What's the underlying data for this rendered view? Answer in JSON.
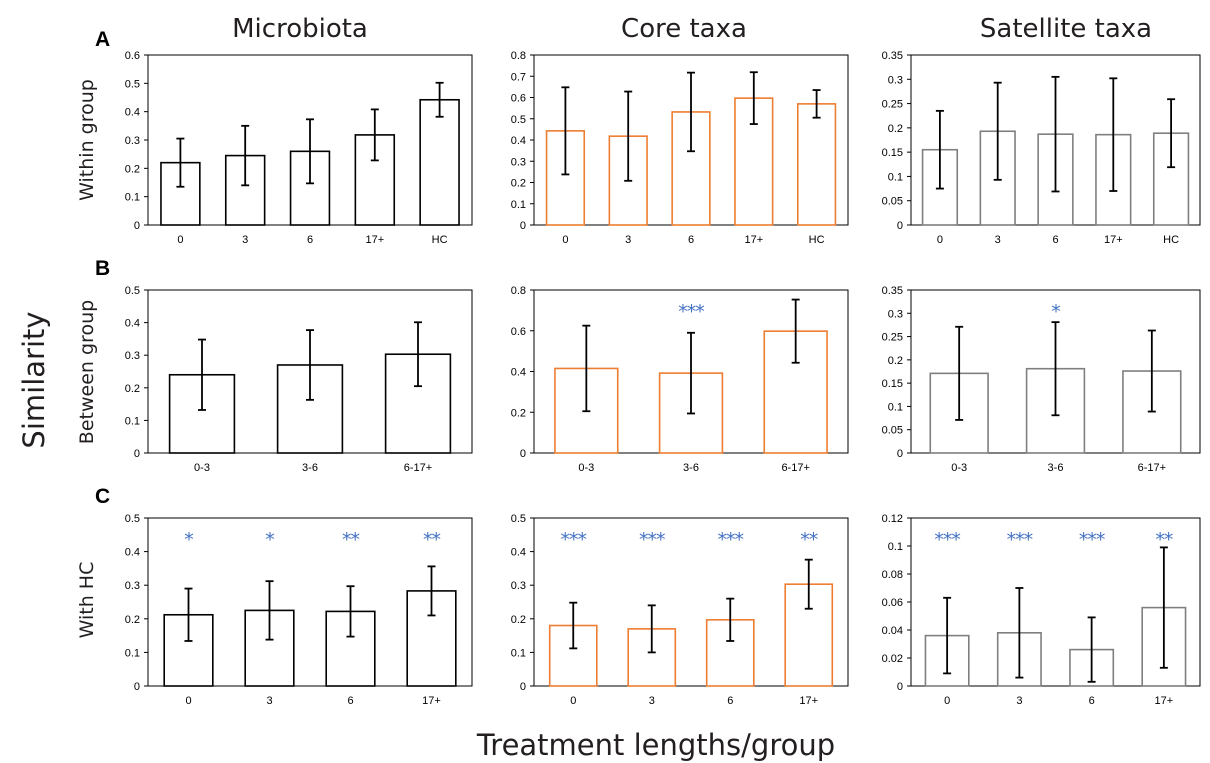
{
  "column_titles": [
    "Microbiota",
    "Core taxa",
    "Satellite taxa"
  ],
  "row_letters": [
    "A",
    "B",
    "C"
  ],
  "row_ylabels": [
    "Within group",
    "Between group",
    "With HC"
  ],
  "shared_ylabel": "Similarity",
  "shared_xlabel": "Treatment lengths/group",
  "colors": {
    "microbiota": "#000000",
    "core": "#ed7d31",
    "satellite": "#7f7f7f",
    "stars": "#4472c4"
  },
  "chart_data": [
    {
      "type": "bar",
      "row": 0,
      "col": 0,
      "color": "#000000",
      "categories": [
        "0",
        "3",
        "6",
        "17+",
        "HC"
      ],
      "values": [
        0.22,
        0.245,
        0.26,
        0.318,
        0.442
      ],
      "errors": [
        0.085,
        0.105,
        0.113,
        0.09,
        0.06
      ],
      "ylim": [
        0,
        0.6
      ],
      "yticks": [
        0,
        0.1,
        0.2,
        0.3,
        0.4,
        0.5,
        0.6
      ],
      "ytick_labels": [
        "0",
        "0.1",
        "0.2",
        "0.3",
        "0.4",
        "0.5",
        "0.6"
      ],
      "annotations": []
    },
    {
      "type": "bar",
      "row": 0,
      "col": 1,
      "color": "#ed7d31",
      "categories": [
        "0",
        "3",
        "6",
        "17+",
        "HC"
      ],
      "values": [
        0.443,
        0.418,
        0.532,
        0.597,
        0.57
      ],
      "errors": [
        0.205,
        0.21,
        0.185,
        0.122,
        0.065
      ],
      "ylim": [
        0,
        0.8
      ],
      "yticks": [
        0,
        0.1,
        0.2,
        0.3,
        0.4,
        0.5,
        0.6,
        0.7,
        0.8
      ],
      "ytick_labels": [
        "0",
        "0.1",
        "0.2",
        "0.3",
        "0.4",
        "0.5",
        "0.6",
        "0.7",
        "0.8"
      ],
      "annotations": []
    },
    {
      "type": "bar",
      "row": 0,
      "col": 2,
      "color": "#7f7f7f",
      "categories": [
        "0",
        "3",
        "6",
        "17+",
        "HC"
      ],
      "values": [
        0.155,
        0.193,
        0.187,
        0.186,
        0.189
      ],
      "errors": [
        0.08,
        0.1,
        0.118,
        0.116,
        0.07
      ],
      "ylim": [
        0,
        0.35
      ],
      "yticks": [
        0,
        0.05,
        0.1,
        0.15,
        0.2,
        0.25,
        0.3,
        0.35
      ],
      "ytick_labels": [
        "0",
        "0.05",
        "0.1",
        "0.15",
        "0.2",
        "0.25",
        "0.3",
        "0.35"
      ],
      "annotations": []
    },
    {
      "type": "bar",
      "row": 1,
      "col": 0,
      "color": "#000000",
      "categories": [
        "0-3",
        "3-6",
        "6-17+"
      ],
      "values": [
        0.24,
        0.27,
        0.303
      ],
      "errors": [
        0.108,
        0.107,
        0.098
      ],
      "ylim": [
        0,
        0.5
      ],
      "yticks": [
        0,
        0.1,
        0.2,
        0.3,
        0.4,
        0.5
      ],
      "ytick_labels": [
        "0",
        "0.1",
        "0.2",
        "0.3",
        "0.4",
        "0.5"
      ],
      "annotations": [
        "",
        "",
        ""
      ]
    },
    {
      "type": "bar",
      "row": 1,
      "col": 1,
      "color": "#ed7d31",
      "categories": [
        "0-3",
        "3-6",
        "6-17+"
      ],
      "values": [
        0.415,
        0.392,
        0.598
      ],
      "errors": [
        0.21,
        0.198,
        0.155
      ],
      "ylim": [
        0,
        0.8
      ],
      "yticks": [
        0,
        0.2,
        0.4,
        0.6,
        0.8
      ],
      "ytick_labels": [
        "0",
        "0.2",
        "0.4",
        "0.6",
        "0.8"
      ],
      "annotations": [
        "",
        "***",
        ""
      ]
    },
    {
      "type": "bar",
      "row": 1,
      "col": 2,
      "color": "#7f7f7f",
      "categories": [
        "0-3",
        "3-6",
        "6-17+"
      ],
      "values": [
        0.171,
        0.181,
        0.176
      ],
      "errors": [
        0.1,
        0.1,
        0.087
      ],
      "ylim": [
        0,
        0.35
      ],
      "yticks": [
        0,
        0.05,
        0.1,
        0.15,
        0.2,
        0.25,
        0.3,
        0.35
      ],
      "ytick_labels": [
        "0",
        "0.05",
        "0.1",
        "0.15",
        "0.2",
        "0.25",
        "0.3",
        "0.35"
      ],
      "annotations": [
        "",
        "*",
        ""
      ]
    },
    {
      "type": "bar",
      "row": 2,
      "col": 0,
      "color": "#000000",
      "categories": [
        "0",
        "3",
        "6",
        "17+"
      ],
      "values": [
        0.212,
        0.225,
        0.222,
        0.283
      ],
      "errors": [
        0.078,
        0.087,
        0.075,
        0.073
      ],
      "ylim": [
        0,
        0.5
      ],
      "yticks": [
        0,
        0.1,
        0.2,
        0.3,
        0.4,
        0.5
      ],
      "ytick_labels": [
        "0",
        "0.1",
        "0.2",
        "0.3",
        "0.4",
        "0.5"
      ],
      "annotations": [
        "*",
        "*",
        "**",
        "**"
      ]
    },
    {
      "type": "bar",
      "row": 2,
      "col": 1,
      "color": "#ed7d31",
      "categories": [
        "0",
        "3",
        "6",
        "17+"
      ],
      "values": [
        0.18,
        0.17,
        0.197,
        0.303
      ],
      "errors": [
        0.068,
        0.07,
        0.063,
        0.073
      ],
      "ylim": [
        0,
        0.5
      ],
      "yticks": [
        0,
        0.1,
        0.2,
        0.3,
        0.4,
        0.5
      ],
      "ytick_labels": [
        "0",
        "0.1",
        "0.2",
        "0.3",
        "0.4",
        "0.5"
      ],
      "annotations": [
        "***",
        "***",
        "***",
        "**"
      ]
    },
    {
      "type": "bar",
      "row": 2,
      "col": 2,
      "color": "#7f7f7f",
      "categories": [
        "0",
        "3",
        "6",
        "17+"
      ],
      "values": [
        0.036,
        0.038,
        0.026,
        0.056
      ],
      "errors": [
        0.027,
        0.032,
        0.023,
        0.043
      ],
      "ylim": [
        0,
        0.12
      ],
      "yticks": [
        0,
        0.02,
        0.04,
        0.06,
        0.08,
        0.1,
        0.12
      ],
      "ytick_labels": [
        "0",
        "0.02",
        "0.04",
        "0.06",
        "0.08",
        "0.1",
        "0.12"
      ],
      "annotations": [
        "***",
        "***",
        "***",
        "**"
      ]
    }
  ]
}
